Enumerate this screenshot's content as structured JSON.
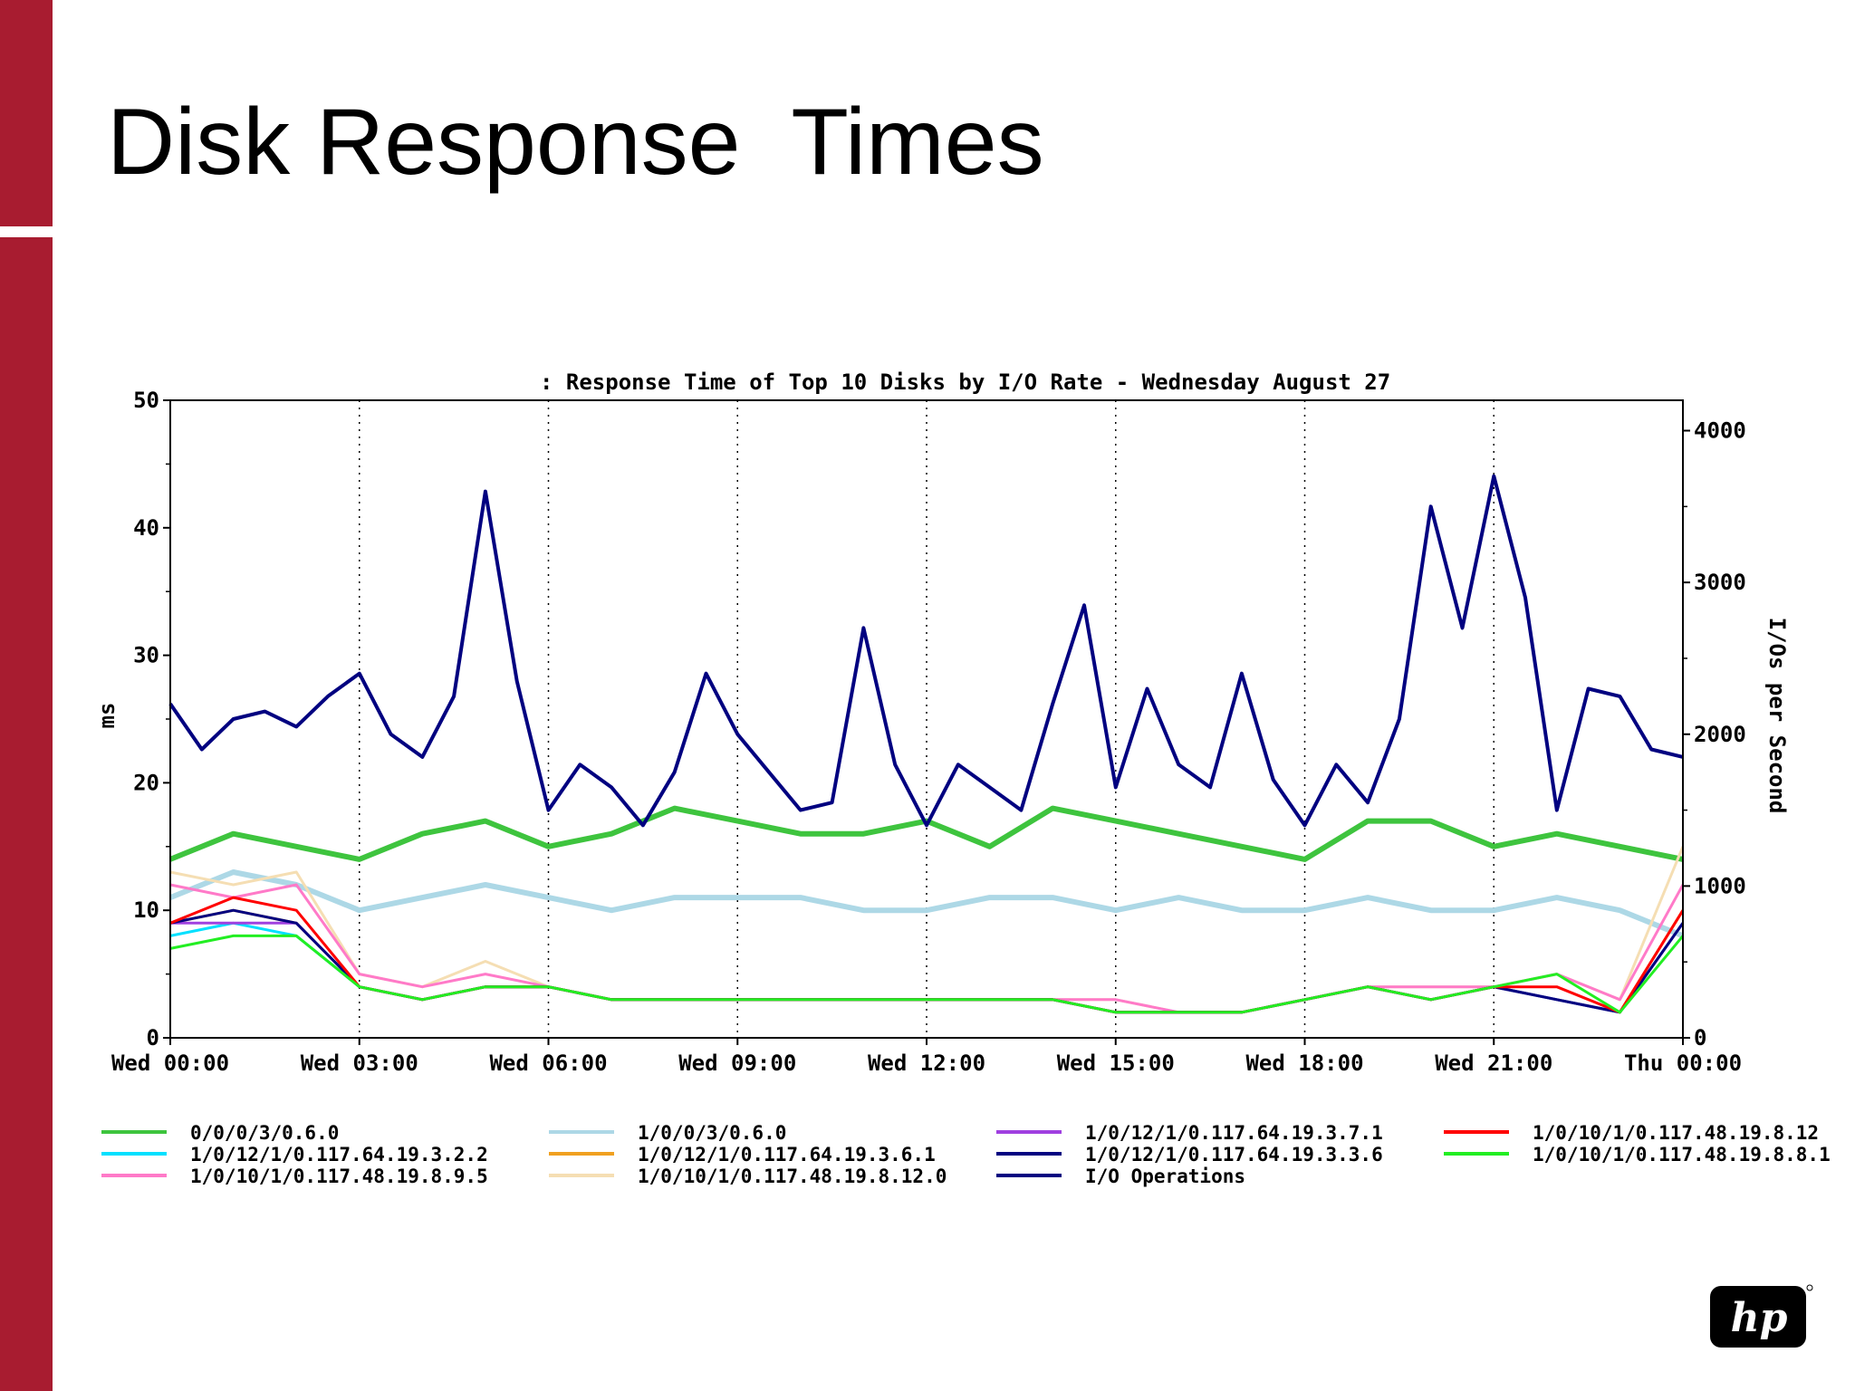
{
  "slide": {
    "title": "Disk Response  Times"
  },
  "colors": {
    "accent_bar": "#a81c30",
    "series_0": "#3ec43e",
    "series_1": "#00e0ff",
    "series_2": "#ff7ac8",
    "series_3": "#add8e6",
    "series_4": "#f0a020",
    "series_5": "#f5deb3",
    "series_6": "#a040e0",
    "series_7": "#000080",
    "series_8": "#000080",
    "series_9": "#ff0000",
    "series_10": "#22ee22"
  },
  "logo": {
    "icon": "hp-logo-icon",
    "text": "hp"
  },
  "chart_data": {
    "type": "line",
    "title": ": Response Time of Top 10 Disks by I/O Rate - Wednesday August 27",
    "ylabel": "ms",
    "y2label": "I/Os per Second",
    "ylim": [
      0,
      50
    ],
    "y2lim": [
      0,
      4200
    ],
    "yticks": [
      "0",
      "10",
      "20",
      "30",
      "40",
      "50"
    ],
    "y2ticks": [
      "0",
      "1000",
      "2000",
      "3000",
      "4000"
    ],
    "xticks": [
      "Wed 00:00",
      "Wed 03:00",
      "Wed 06:00",
      "Wed 09:00",
      "Wed 12:00",
      "Wed 15:00",
      "Wed 18:00",
      "Wed 21:00",
      "Thu 00:00"
    ],
    "xlim_hours": [
      0,
      24
    ],
    "grid": "vertical dotted",
    "legend_position": "bottom",
    "series": [
      {
        "name": "0/0/0/3/0.6.0",
        "axis": "ms",
        "color": "#3ec43e",
        "x": [
          0,
          1,
          2,
          3,
          4,
          5,
          6,
          7,
          8,
          9,
          10,
          11,
          12,
          13,
          14,
          15,
          16,
          17,
          18,
          19,
          20,
          21,
          22,
          23,
          24
        ],
        "y": [
          14,
          16,
          15,
          14,
          16,
          17,
          15,
          16,
          18,
          17,
          16,
          16,
          17,
          15,
          18,
          17,
          16,
          15,
          14,
          17,
          17,
          15,
          16,
          15,
          14
        ]
      },
      {
        "name": "1/0/12/1/0.117.64.19.3.2.2",
        "axis": "ms",
        "color": "#00e0ff",
        "x": [
          0,
          1,
          2,
          3,
          4,
          5,
          6,
          7,
          8,
          9,
          10,
          11,
          12,
          13,
          14,
          15,
          16,
          17,
          18,
          19,
          20,
          21,
          22,
          23,
          24
        ],
        "y": [
          8,
          9,
          8,
          4,
          3,
          4,
          4,
          3,
          3,
          3,
          3,
          3,
          3,
          3,
          3,
          2,
          2,
          2,
          3,
          4,
          3,
          4,
          3,
          2,
          9
        ]
      },
      {
        "name": "1/0/10/1/0.117.48.19.8.9.5",
        "axis": "ms",
        "color": "#ff7ac8",
        "x": [
          0,
          1,
          2,
          3,
          4,
          5,
          6,
          7,
          8,
          9,
          10,
          11,
          12,
          13,
          14,
          15,
          16,
          17,
          18,
          19,
          20,
          21,
          22,
          23,
          24
        ],
        "y": [
          12,
          11,
          12,
          5,
          4,
          5,
          4,
          3,
          3,
          3,
          3,
          3,
          3,
          3,
          3,
          3,
          2,
          2,
          3,
          4,
          4,
          4,
          5,
          3,
          12
        ]
      },
      {
        "name": "1/0/0/3/0.6.0",
        "axis": "ms",
        "color": "#add8e6",
        "x": [
          0,
          1,
          2,
          3,
          4,
          5,
          6,
          7,
          8,
          9,
          10,
          11,
          12,
          13,
          14,
          15,
          16,
          17,
          18,
          19,
          20,
          21,
          22,
          23,
          24
        ],
        "y": [
          11,
          13,
          12,
          10,
          11,
          12,
          11,
          10,
          11,
          11,
          11,
          10,
          10,
          11,
          11,
          10,
          11,
          10,
          10,
          11,
          10,
          10,
          11,
          10,
          8
        ]
      },
      {
        "name": "1/0/12/1/0.117.64.19.3.6.1",
        "axis": "ms",
        "color": "#f0a020",
        "x": [
          0,
          1,
          2,
          3,
          4,
          5,
          6,
          7,
          8,
          9,
          10,
          11,
          12,
          13,
          14,
          15,
          16,
          17,
          18,
          19,
          20,
          21,
          22,
          23,
          24
        ],
        "y": [
          9,
          10,
          9,
          4,
          3,
          4,
          4,
          3,
          3,
          3,
          3,
          3,
          3,
          3,
          3,
          2,
          2,
          2,
          3,
          4,
          3,
          4,
          3,
          2,
          10
        ]
      },
      {
        "name": "1/0/10/1/0.117.48.19.8.12.0",
        "axis": "ms",
        "color": "#f5deb3",
        "x": [
          0,
          1,
          2,
          3,
          4,
          5,
          6,
          7,
          8,
          9,
          10,
          11,
          12,
          13,
          14,
          15,
          16,
          17,
          18,
          19,
          20,
          21,
          22,
          23,
          24
        ],
        "y": [
          13,
          12,
          13,
          5,
          4,
          6,
          4,
          3,
          3,
          3,
          3,
          3,
          3,
          3,
          3,
          3,
          2,
          2,
          3,
          4,
          4,
          4,
          5,
          3,
          15
        ]
      },
      {
        "name": "1/0/12/1/0.117.64.19.3.7.1",
        "axis": "ms",
        "color": "#a040e0",
        "x": [
          0,
          1,
          2,
          3,
          4,
          5,
          6,
          7,
          8,
          9,
          10,
          11,
          12,
          13,
          14,
          15,
          16,
          17,
          18,
          19,
          20,
          21,
          22,
          23,
          24
        ],
        "y": [
          9,
          9,
          9,
          4,
          3,
          4,
          4,
          3,
          3,
          3,
          3,
          3,
          3,
          3,
          3,
          2,
          2,
          2,
          3,
          4,
          3,
          4,
          3,
          2,
          9
        ]
      },
      {
        "name": "1/0/12/1/0.117.64.19.3.3.6",
        "axis": "ms",
        "color": "#000080",
        "x": [
          0,
          1,
          2,
          3,
          4,
          5,
          6,
          7,
          8,
          9,
          10,
          11,
          12,
          13,
          14,
          15,
          16,
          17,
          18,
          19,
          20,
          21,
          22,
          23,
          24
        ],
        "y": [
          9,
          10,
          9,
          4,
          3,
          4,
          4,
          3,
          3,
          3,
          3,
          3,
          3,
          3,
          3,
          2,
          2,
          2,
          3,
          4,
          3,
          4,
          3,
          2,
          9
        ]
      },
      {
        "name": "I/O Operations",
        "axis": "I/Os per Second",
        "color": "#000080",
        "x": [
          0,
          0.5,
          1,
          1.5,
          2,
          2.5,
          3,
          3.5,
          4,
          4.5,
          5,
          5.5,
          6,
          6.5,
          7,
          7.5,
          8,
          8.5,
          9,
          9.5,
          10,
          10.5,
          11,
          11.5,
          12,
          12.5,
          13,
          13.5,
          14,
          14.5,
          15,
          15.5,
          16,
          16.5,
          17,
          17.5,
          18,
          18.5,
          19,
          19.5,
          20,
          20.5,
          21,
          21.5,
          22,
          22.5,
          23,
          23.5,
          24
        ],
        "y": [
          2200,
          1900,
          2100,
          2150,
          2050,
          2250,
          2400,
          2000,
          1850,
          2250,
          3600,
          2350,
          1500,
          1800,
          1650,
          1400,
          1750,
          2400,
          2000,
          1750,
          1500,
          1550,
          2700,
          1800,
          1400,
          1800,
          1650,
          1500,
          2200,
          2850,
          1650,
          2300,
          1800,
          1650,
          2400,
          1700,
          1400,
          1800,
          1550,
          2100,
          3500,
          2700,
          3700,
          2900,
          1500,
          2300,
          2250,
          1900,
          1850
        ]
      },
      {
        "name": "1/0/10/1/0.117.48.19.8.12",
        "axis": "ms",
        "color": "#ff0000",
        "x": [
          0,
          1,
          2,
          3,
          4,
          5,
          6,
          7,
          8,
          9,
          10,
          11,
          12,
          13,
          14,
          15,
          16,
          17,
          18,
          19,
          20,
          21,
          22,
          23,
          24
        ],
        "y": [
          9,
          11,
          10,
          4,
          3,
          4,
          4,
          3,
          3,
          3,
          3,
          3,
          3,
          3,
          3,
          2,
          2,
          2,
          3,
          4,
          3,
          4,
          4,
          2,
          10
        ]
      },
      {
        "name": "1/0/10/1/0.117.48.19.8.8.1",
        "axis": "ms",
        "color": "#22ee22",
        "x": [
          0,
          1,
          2,
          3,
          4,
          5,
          6,
          7,
          8,
          9,
          10,
          11,
          12,
          13,
          14,
          15,
          16,
          17,
          18,
          19,
          20,
          21,
          22,
          23,
          24
        ],
        "y": [
          7,
          8,
          8,
          4,
          3,
          4,
          4,
          3,
          3,
          3,
          3,
          3,
          3,
          3,
          3,
          2,
          2,
          2,
          3,
          4,
          3,
          4,
          5,
          2,
          8
        ]
      }
    ]
  }
}
